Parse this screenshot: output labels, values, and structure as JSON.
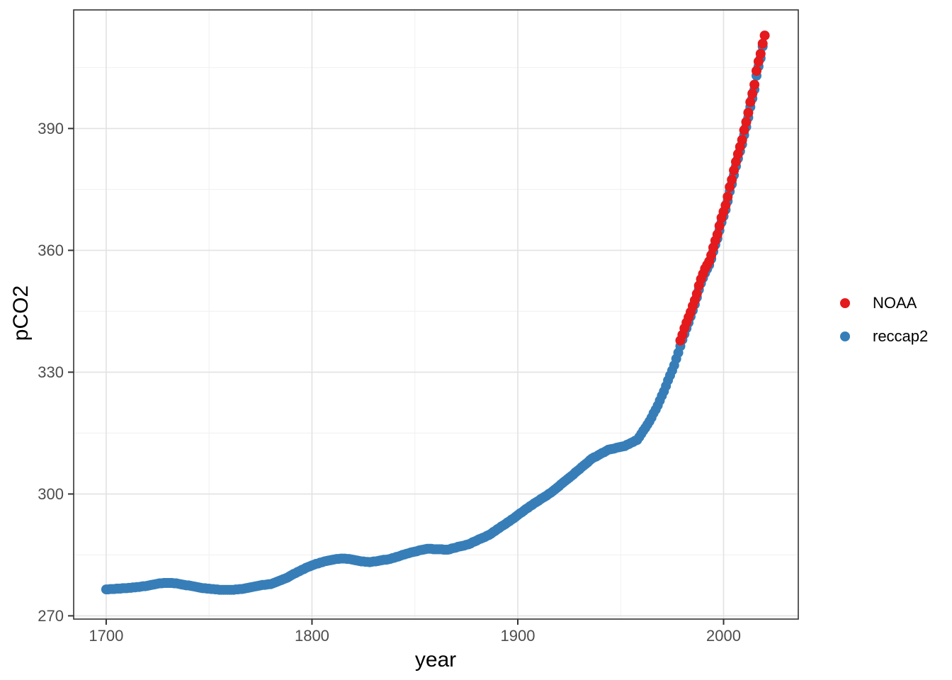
{
  "figure": {
    "type_hint": "ggplot-style scatter plot, theme_bw, white background"
  },
  "chart_data": {
    "type": "scatter",
    "title": "",
    "xlabel": "year",
    "ylabel": "pCO2",
    "x_ticks": [
      1700,
      1800,
      1900,
      2000
    ],
    "x_minor_ticks": [
      1750,
      1850,
      1950
    ],
    "y_ticks": [
      270,
      300,
      330,
      360,
      390
    ],
    "y_minor_ticks": [
      285,
      315,
      345,
      375,
      405
    ],
    "xlim": [
      1684.2,
      2036.3
    ],
    "ylim": [
      269.2,
      419.2
    ],
    "grid": true,
    "legend_position": "right",
    "point_radius_px": 7,
    "colors": {
      "noaa_red": "#E41A1C",
      "reccap2_blue": "#377EB8",
      "grid_major": "#e2e2e2",
      "grid_minor": "#f0f0f0",
      "panel_border": "#333333",
      "tick_label": "#4d4d4d"
    },
    "legend": [
      {
        "label": "NOAA",
        "color": "#E41A1C"
      },
      {
        "label": "reccap2",
        "color": "#377EB8"
      }
    ],
    "series": [
      {
        "name": "reccap2",
        "color": "#377EB8",
        "start_year": 1700,
        "values": [
          276.5,
          276.5,
          276.6,
          276.6,
          276.6,
          276.7,
          276.7,
          276.7,
          276.8,
          276.8,
          276.8,
          276.9,
          276.9,
          277.0,
          277.0,
          277.1,
          277.1,
          277.2,
          277.3,
          277.3,
          277.4,
          277.5,
          277.6,
          277.7,
          277.8,
          277.9,
          278.0,
          278.0,
          278.1,
          278.1,
          278.1,
          278.1,
          278.1,
          278.0,
          278.0,
          277.9,
          277.8,
          277.7,
          277.6,
          277.5,
          277.5,
          277.4,
          277.3,
          277.2,
          277.1,
          277.0,
          276.9,
          276.8,
          276.8,
          276.7,
          276.7,
          276.6,
          276.6,
          276.5,
          276.5,
          276.4,
          276.4,
          276.4,
          276.4,
          276.4,
          276.4,
          276.4,
          276.4,
          276.5,
          276.5,
          276.6,
          276.6,
          276.7,
          276.8,
          276.9,
          277.0,
          277.1,
          277.2,
          277.3,
          277.4,
          277.5,
          277.6,
          277.6,
          277.7,
          277.8,
          277.8,
          278.0,
          278.2,
          278.4,
          278.6,
          278.8,
          279.0,
          279.2,
          279.4,
          279.7,
          280.0,
          280.3,
          280.5,
          280.8,
          281.0,
          281.3,
          281.5,
          281.8,
          282.0,
          282.2,
          282.4,
          282.6,
          282.8,
          282.9,
          283.1,
          283.2,
          283.4,
          283.5,
          283.6,
          283.7,
          283.8,
          283.9,
          284.0,
          284.0,
          284.1,
          284.1,
          284.1,
          284.0,
          284.0,
          283.9,
          283.8,
          283.7,
          283.6,
          283.5,
          283.4,
          283.4,
          283.3,
          283.3,
          283.2,
          283.3,
          283.4,
          283.4,
          283.5,
          283.6,
          283.7,
          283.8,
          283.8,
          283.9,
          284.0,
          284.2,
          284.3,
          284.5,
          284.6,
          284.8,
          285.0,
          285.1,
          285.3,
          285.4,
          285.6,
          285.7,
          285.8,
          285.9,
          286.1,
          286.2,
          286.3,
          286.4,
          286.5,
          286.5,
          286.5,
          286.4,
          286.4,
          286.4,
          286.4,
          286.4,
          286.3,
          286.3,
          286.3,
          286.4,
          286.6,
          286.7,
          286.8,
          287.0,
          287.1,
          287.2,
          287.3,
          287.5,
          287.6,
          287.8,
          288.1,
          288.3,
          288.5,
          288.8,
          289.0,
          289.2,
          289.4,
          289.7,
          289.9,
          290.2,
          290.6,
          290.9,
          291.3,
          291.6,
          292.0,
          292.3,
          292.6,
          293.0,
          293.3,
          293.7,
          294.0,
          294.4,
          294.8,
          295.2,
          295.5,
          295.9,
          296.3,
          296.6,
          297.0,
          297.3,
          297.7,
          298.0,
          298.3,
          298.7,
          299.0,
          299.3,
          299.6,
          300.0,
          300.3,
          300.7,
          301.1,
          301.5,
          301.9,
          302.4,
          302.8,
          303.2,
          303.6,
          304.0,
          304.4,
          304.8,
          305.3,
          305.7,
          306.1,
          306.6,
          307.0,
          307.4,
          307.8,
          308.3,
          308.7,
          309.0,
          309.2,
          309.5,
          309.8,
          310.1,
          310.3,
          310.6,
          310.9,
          311.0,
          311.1,
          311.2,
          311.4,
          311.5,
          311.6,
          311.7,
          311.8,
          312.1,
          312.3,
          312.6,
          312.8,
          313.1,
          313.3,
          314.0,
          314.8,
          315.6,
          316.3,
          317.1,
          317.9,
          318.8,
          319.9,
          320.8,
          321.8,
          323.0,
          324.2,
          325.3,
          326.6,
          328.0,
          329.2,
          330.4,
          331.7,
          333.3,
          334.8,
          336.4,
          338.0,
          339.4,
          340.8,
          342.2,
          343.7,
          345.2,
          346.7,
          348.4,
          350.3,
          351.9,
          353.2,
          354.4,
          355.4,
          356.4,
          357.9,
          359.7,
          361.4,
          362.9,
          364.9,
          366.9,
          368.4,
          370.0,
          372.1,
          374.5,
          376.3,
          378.5,
          380.7,
          382.6,
          384.4,
          386.1,
          388.4,
          390.4,
          392.7,
          395.3,
          397.4,
          399.6,
          403.0,
          405.3,
          407.3,
          410.2
        ]
      },
      {
        "name": "NOAA",
        "color": "#E41A1C",
        "start_year": 1979,
        "values": [
          337.8,
          339.2,
          340.8,
          342.2,
          343.5,
          344.8,
          346.3,
          347.7,
          349.3,
          351.3,
          352.9,
          354.2,
          355.5,
          356.4,
          357.3,
          358.8,
          360.7,
          362.4,
          363.9,
          366.0,
          368.0,
          369.5,
          371.1,
          373.2,
          375.6,
          377.4,
          379.7,
          381.8,
          383.7,
          385.5,
          387.2,
          389.6,
          391.6,
          393.9,
          396.5,
          398.6,
          400.8,
          404.2,
          406.5,
          408.4,
          410.9,
          412.9
        ]
      }
    ]
  }
}
